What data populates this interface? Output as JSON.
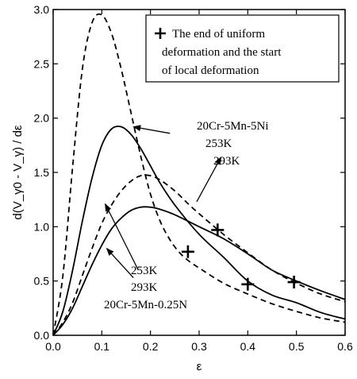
{
  "chart_data": {
    "type": "line",
    "title": "",
    "xlabel": "ε",
    "ylabel": "d(V_γ0 - V_γ) / dε",
    "xlim": [
      0.0,
      0.6
    ],
    "ylim": [
      0.0,
      3.0
    ],
    "xticks": [
      "0.0",
      "0.1",
      "0.2",
      "0.3",
      "0.4",
      "0.5",
      "0.6"
    ],
    "yticks": [
      "0.0",
      "0.5",
      "1.0",
      "1.5",
      "2.0",
      "2.5",
      "3.0"
    ],
    "legend": {
      "placement": "top-right",
      "lines": [
        "The end of uniform",
        "deformation and the start",
        "of local deformation"
      ]
    },
    "annotations": {
      "group_ni": [
        "20Cr-5Mn-5Ni",
        "253K",
        "293K"
      ],
      "group_n": [
        "253K",
        "293K",
        "20Cr-5Mn-0.25N"
      ]
    },
    "series": [
      {
        "style": "dashed",
        "x": [
          0.0,
          0.02,
          0.04,
          0.06,
          0.08,
          0.1,
          0.12,
          0.14,
          0.16,
          0.18,
          0.2,
          0.22,
          0.24,
          0.26,
          0.28,
          0.3,
          0.35,
          0.4,
          0.45,
          0.5,
          0.55,
          0.6
        ],
        "y": [
          0.0,
          0.55,
          1.55,
          2.45,
          2.88,
          2.95,
          2.78,
          2.45,
          2.05,
          1.65,
          1.3,
          1.05,
          0.88,
          0.76,
          0.68,
          0.62,
          0.48,
          0.38,
          0.29,
          0.22,
          0.16,
          0.12
        ]
      },
      {
        "style": "solid",
        "x": [
          0.0,
          0.02,
          0.04,
          0.06,
          0.08,
          0.1,
          0.12,
          0.14,
          0.16,
          0.18,
          0.2,
          0.22,
          0.25,
          0.3,
          0.35,
          0.4,
          0.45,
          0.5,
          0.55,
          0.6
        ],
        "y": [
          0.0,
          0.22,
          0.6,
          1.05,
          1.45,
          1.75,
          1.9,
          1.92,
          1.85,
          1.72,
          1.56,
          1.4,
          1.2,
          0.93,
          0.72,
          0.5,
          0.37,
          0.3,
          0.21,
          0.15
        ]
      },
      {
        "style": "dashed",
        "x": [
          0.0,
          0.02,
          0.04,
          0.06,
          0.08,
          0.1,
          0.12,
          0.14,
          0.16,
          0.18,
          0.2,
          0.22,
          0.25,
          0.28,
          0.3,
          0.35,
          0.4,
          0.45,
          0.5,
          0.55,
          0.6
        ],
        "y": [
          0.0,
          0.12,
          0.3,
          0.55,
          0.8,
          1.03,
          1.2,
          1.33,
          1.42,
          1.47,
          1.47,
          1.43,
          1.33,
          1.2,
          1.12,
          0.93,
          0.76,
          0.6,
          0.48,
          0.38,
          0.31
        ]
      },
      {
        "style": "solid",
        "x": [
          0.0,
          0.02,
          0.04,
          0.06,
          0.08,
          0.1,
          0.12,
          0.14,
          0.16,
          0.18,
          0.2,
          0.22,
          0.25,
          0.3,
          0.35,
          0.4,
          0.45,
          0.5,
          0.55,
          0.6
        ],
        "y": [
          0.0,
          0.1,
          0.25,
          0.45,
          0.65,
          0.83,
          0.98,
          1.08,
          1.15,
          1.18,
          1.18,
          1.16,
          1.11,
          1.0,
          0.89,
          0.75,
          0.6,
          0.5,
          0.41,
          0.33
        ]
      }
    ],
    "markers": {
      "symbol": "+",
      "points": [
        {
          "x": 0.277,
          "y": 0.77
        },
        {
          "x": 0.338,
          "y": 0.97
        },
        {
          "x": 0.4,
          "y": 0.47
        },
        {
          "x": 0.495,
          "y": 0.49
        }
      ]
    },
    "arrows": [
      {
        "from": [
          0.24,
          1.86
        ],
        "to": [
          0.165,
          1.92
        ]
      },
      {
        "from": [
          0.295,
          1.23
        ],
        "to": [
          0.345,
          1.64
        ]
      },
      {
        "from": [
          0.175,
          0.6
        ],
        "to": [
          0.107,
          1.21
        ]
      },
      {
        "from": [
          0.165,
          0.53
        ],
        "to": [
          0.11,
          0.8
        ]
      }
    ]
  }
}
